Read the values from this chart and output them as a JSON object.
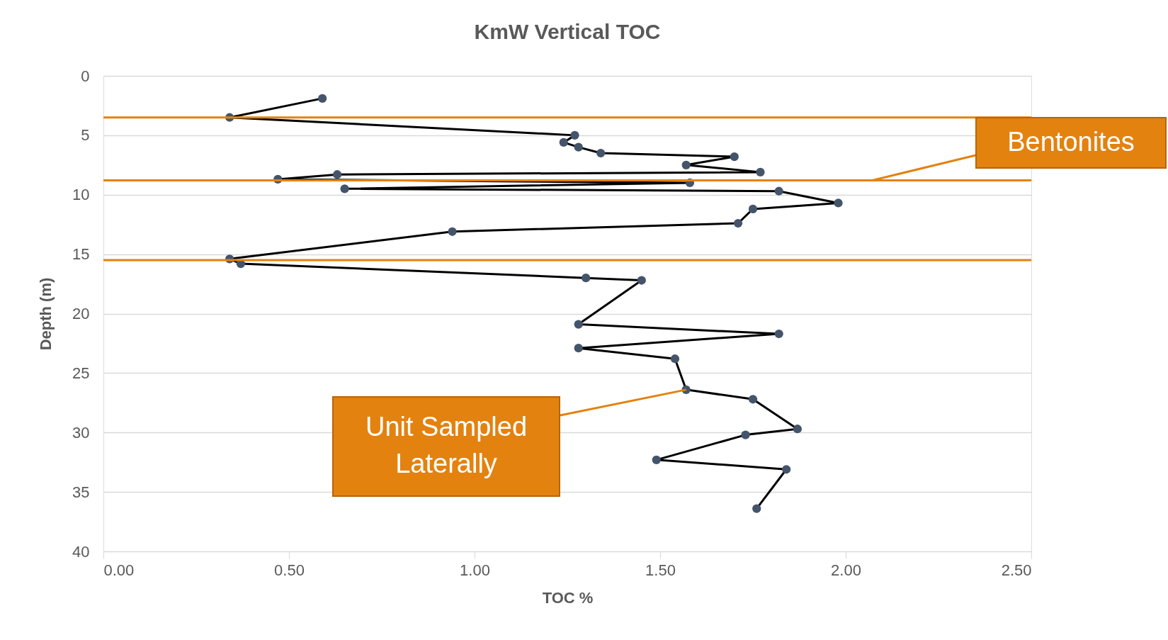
{
  "chart_data": {
    "type": "line",
    "title": "KmW Vertical TOC",
    "xlabel": "TOC %",
    "ylabel": "Depth (m)",
    "x": [
      0.59,
      0.34,
      1.27,
      1.24,
      1.28,
      1.34,
      1.7,
      1.57,
      1.77,
      0.63,
      0.47,
      1.58,
      0.65,
      1.82,
      1.98,
      1.75,
      1.71,
      0.94,
      0.34,
      0.37,
      1.3,
      1.45,
      1.28,
      1.82,
      1.28,
      1.54,
      1.57,
      1.75,
      1.87,
      1.73,
      1.49,
      1.84,
      1.76
    ],
    "series": [
      {
        "color": "#44546a",
        "values": [
          1.9,
          3.5,
          5.0,
          5.6,
          6.0,
          6.5,
          6.8,
          7.5,
          8.1,
          8.3,
          8.7,
          9.0,
          9.5,
          9.7,
          10.7,
          11.2,
          12.4,
          13.1,
          15.4,
          15.8,
          17.0,
          17.2,
          20.9,
          21.7,
          22.9,
          23.8,
          26.4,
          27.2,
          29.7,
          30.2,
          32.3,
          33.1,
          36.4
        ]
      }
    ],
    "xlim": [
      0,
      2.5
    ],
    "ylim": [
      40,
      0
    ],
    "xticks": [
      {
        "value": 0,
        "label": "0.00"
      },
      {
        "value": 0.5,
        "label": "0.50"
      },
      {
        "value": 1,
        "label": "1.00"
      },
      {
        "value": 1.5,
        "label": "1.50"
      },
      {
        "value": 2,
        "label": "2.00"
      },
      {
        "value": 2.5,
        "label": "2.50"
      }
    ],
    "yticks": [
      0,
      5,
      10,
      15,
      20,
      25,
      30,
      35,
      40
    ],
    "grid": "y",
    "marker": "circle",
    "line_style": "solid",
    "ref_lines": [
      {
        "axis": "y",
        "value": 3.5,
        "color": "#e3820f"
      },
      {
        "axis": "y",
        "value": 8.8,
        "color": "#e3820f"
      },
      {
        "axis": "y",
        "value": 15.5,
        "color": "#e3820f"
      }
    ],
    "annotations": [
      {
        "text": "Bentonites",
        "x": 2.07,
        "y": 8.8
      },
      {
        "text": "Unit Sampled\nLaterally",
        "x": 1.57,
        "y": 26.4
      }
    ]
  }
}
